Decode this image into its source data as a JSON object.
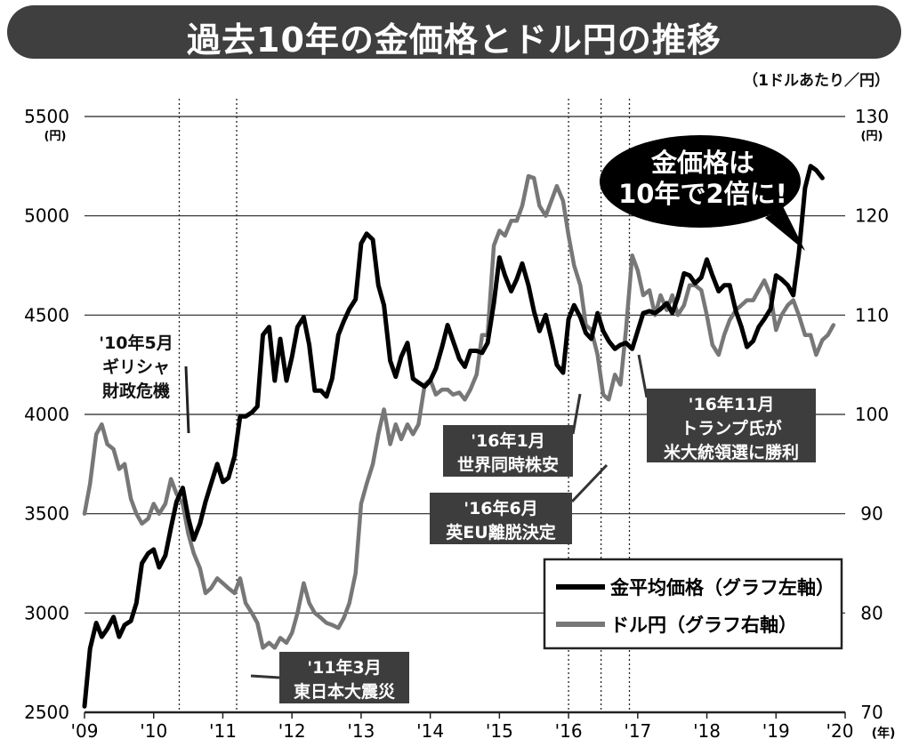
{
  "title": "過去10年の金価格とドル円の推移",
  "unit_note": "（1ドルあたり／円）",
  "chart_data": {
    "type": "line",
    "left_axis": {
      "unit": "(円)",
      "min": 2500,
      "max": 5500,
      "ticks": [
        "5500",
        "5000",
        "4500",
        "4000",
        "3500",
        "3000",
        "2500"
      ]
    },
    "right_axis": {
      "unit": "(円)",
      "min": 70,
      "max": 130,
      "ticks": [
        "130",
        "120",
        "110",
        "100",
        "90",
        "80",
        "70"
      ]
    },
    "x_axis": {
      "min": 2009,
      "max": 2020,
      "unit": "(年)",
      "ticks": [
        {
          "x": 2009,
          "label": "'09"
        },
        {
          "x": 2010,
          "label": "'10"
        },
        {
          "x": 2011,
          "label": "'11"
        },
        {
          "x": 2012,
          "label": "'12"
        },
        {
          "x": 2013,
          "label": "'13"
        },
        {
          "x": 2014,
          "label": "'14"
        },
        {
          "x": 2015,
          "label": "'15"
        },
        {
          "x": 2016,
          "label": "'16"
        },
        {
          "x": 2017,
          "label": "'17"
        },
        {
          "x": 2018,
          "label": "'18"
        },
        {
          "x": 2019,
          "label": "'19"
        },
        {
          "x": 2020,
          "label": "'20"
        }
      ]
    },
    "grid": "horizontal",
    "legend_placement": "bottom-right",
    "series": [
      {
        "name": "金平均価格（グラフ左軸）",
        "axis": "left",
        "color": "#000000",
        "points": [
          [
            2009.0,
            2530
          ],
          [
            2009.08,
            2820
          ],
          [
            2009.17,
            2950
          ],
          [
            2009.25,
            2880
          ],
          [
            2009.33,
            2920
          ],
          [
            2009.42,
            2980
          ],
          [
            2009.5,
            2880
          ],
          [
            2009.58,
            2940
          ],
          [
            2009.67,
            2960
          ],
          [
            2009.75,
            3050
          ],
          [
            2009.83,
            3250
          ],
          [
            2009.92,
            3300
          ],
          [
            2010.0,
            3320
          ],
          [
            2010.08,
            3230
          ],
          [
            2010.17,
            3290
          ],
          [
            2010.25,
            3430
          ],
          [
            2010.33,
            3560
          ],
          [
            2010.42,
            3630
          ],
          [
            2010.5,
            3480
          ],
          [
            2010.58,
            3370
          ],
          [
            2010.67,
            3450
          ],
          [
            2010.75,
            3560
          ],
          [
            2010.83,
            3650
          ],
          [
            2010.92,
            3750
          ],
          [
            2011.0,
            3660
          ],
          [
            2011.08,
            3680
          ],
          [
            2011.17,
            3790
          ],
          [
            2011.25,
            3990
          ],
          [
            2011.33,
            3990
          ],
          [
            2011.42,
            4010
          ],
          [
            2011.5,
            4040
          ],
          [
            2011.58,
            4400
          ],
          [
            2011.67,
            4440
          ],
          [
            2011.75,
            4170
          ],
          [
            2011.83,
            4380
          ],
          [
            2011.92,
            4170
          ],
          [
            2012.0,
            4290
          ],
          [
            2012.08,
            4440
          ],
          [
            2012.17,
            4490
          ],
          [
            2012.25,
            4350
          ],
          [
            2012.33,
            4120
          ],
          [
            2012.42,
            4120
          ],
          [
            2012.5,
            4090
          ],
          [
            2012.58,
            4180
          ],
          [
            2012.67,
            4400
          ],
          [
            2012.75,
            4470
          ],
          [
            2012.83,
            4530
          ],
          [
            2012.92,
            4580
          ],
          [
            2013.0,
            4860
          ],
          [
            2013.08,
            4910
          ],
          [
            2013.17,
            4880
          ],
          [
            2013.25,
            4650
          ],
          [
            2013.33,
            4550
          ],
          [
            2013.42,
            4270
          ],
          [
            2013.5,
            4190
          ],
          [
            2013.58,
            4290
          ],
          [
            2013.67,
            4360
          ],
          [
            2013.75,
            4180
          ],
          [
            2013.83,
            4160
          ],
          [
            2013.92,
            4140
          ],
          [
            2014.0,
            4170
          ],
          [
            2014.08,
            4230
          ],
          [
            2014.17,
            4340
          ],
          [
            2014.25,
            4450
          ],
          [
            2014.33,
            4370
          ],
          [
            2014.42,
            4280
          ],
          [
            2014.5,
            4240
          ],
          [
            2014.58,
            4320
          ],
          [
            2014.67,
            4320
          ],
          [
            2014.75,
            4310
          ],
          [
            2014.83,
            4360
          ],
          [
            2014.92,
            4560
          ],
          [
            2015.0,
            4790
          ],
          [
            2015.08,
            4700
          ],
          [
            2015.17,
            4620
          ],
          [
            2015.25,
            4680
          ],
          [
            2015.33,
            4760
          ],
          [
            2015.42,
            4650
          ],
          [
            2015.5,
            4520
          ],
          [
            2015.58,
            4420
          ],
          [
            2015.67,
            4500
          ],
          [
            2015.75,
            4380
          ],
          [
            2015.83,
            4250
          ],
          [
            2015.92,
            4210
          ],
          [
            2016.0,
            4480
          ],
          [
            2016.08,
            4550
          ],
          [
            2016.17,
            4490
          ],
          [
            2016.25,
            4410
          ],
          [
            2016.33,
            4380
          ],
          [
            2016.42,
            4510
          ],
          [
            2016.5,
            4420
          ],
          [
            2016.58,
            4370
          ],
          [
            2016.67,
            4330
          ],
          [
            2016.75,
            4350
          ],
          [
            2016.83,
            4360
          ],
          [
            2016.92,
            4330
          ],
          [
            2017.0,
            4420
          ],
          [
            2017.08,
            4510
          ],
          [
            2017.17,
            4520
          ],
          [
            2017.25,
            4510
          ],
          [
            2017.33,
            4530
          ],
          [
            2017.42,
            4560
          ],
          [
            2017.5,
            4510
          ],
          [
            2017.58,
            4590
          ],
          [
            2017.67,
            4710
          ],
          [
            2017.75,
            4700
          ],
          [
            2017.83,
            4660
          ],
          [
            2017.92,
            4690
          ],
          [
            2018.0,
            4780
          ],
          [
            2018.08,
            4700
          ],
          [
            2018.17,
            4620
          ],
          [
            2018.25,
            4650
          ],
          [
            2018.33,
            4650
          ],
          [
            2018.42,
            4520
          ],
          [
            2018.5,
            4440
          ],
          [
            2018.58,
            4340
          ],
          [
            2018.67,
            4370
          ],
          [
            2018.75,
            4440
          ],
          [
            2018.83,
            4480
          ],
          [
            2018.92,
            4530
          ],
          [
            2019.0,
            4700
          ],
          [
            2019.08,
            4680
          ],
          [
            2019.17,
            4650
          ],
          [
            2019.25,
            4600
          ],
          [
            2019.33,
            4810
          ],
          [
            2019.42,
            5140
          ],
          [
            2019.5,
            5250
          ],
          [
            2019.58,
            5230
          ],
          [
            2019.67,
            5190
          ]
        ]
      },
      {
        "name": "ドル円（グラフ右軸）",
        "axis": "right",
        "color": "#777777",
        "points": [
          [
            2009.0,
            90.0
          ],
          [
            2009.08,
            93.0
          ],
          [
            2009.17,
            98.0
          ],
          [
            2009.25,
            99.0
          ],
          [
            2009.33,
            97.0
          ],
          [
            2009.42,
            96.5
          ],
          [
            2009.5,
            94.5
          ],
          [
            2009.58,
            95.0
          ],
          [
            2009.67,
            91.5
          ],
          [
            2009.75,
            90.0
          ],
          [
            2009.83,
            89.0
          ],
          [
            2009.92,
            89.5
          ],
          [
            2010.0,
            91.0
          ],
          [
            2010.08,
            90.0
          ],
          [
            2010.17,
            91.0
          ],
          [
            2010.25,
            93.5
          ],
          [
            2010.33,
            92.0
          ],
          [
            2010.42,
            91.0
          ],
          [
            2010.5,
            88.0
          ],
          [
            2010.58,
            86.0
          ],
          [
            2010.67,
            84.5
          ],
          [
            2010.75,
            82.0
          ],
          [
            2010.83,
            82.5
          ],
          [
            2010.92,
            83.5
          ],
          [
            2011.0,
            83.0
          ],
          [
            2011.08,
            82.5
          ],
          [
            2011.17,
            82.0
          ],
          [
            2011.25,
            83.5
          ],
          [
            2011.33,
            81.0
          ],
          [
            2011.42,
            80.0
          ],
          [
            2011.5,
            79.0
          ],
          [
            2011.58,
            76.5
          ],
          [
            2011.67,
            77.0
          ],
          [
            2011.75,
            76.5
          ],
          [
            2011.83,
            77.5
          ],
          [
            2011.92,
            77.0
          ],
          [
            2012.0,
            78.0
          ],
          [
            2012.08,
            80.0
          ],
          [
            2012.17,
            83.0
          ],
          [
            2012.25,
            81.0
          ],
          [
            2012.33,
            80.0
          ],
          [
            2012.42,
            79.5
          ],
          [
            2012.5,
            79.0
          ],
          [
            2012.58,
            78.8
          ],
          [
            2012.67,
            78.5
          ],
          [
            2012.75,
            79.5
          ],
          [
            2012.83,
            81.0
          ],
          [
            2012.92,
            84.0
          ],
          [
            2013.0,
            91.0
          ],
          [
            2013.08,
            93.0
          ],
          [
            2013.17,
            95.0
          ],
          [
            2013.25,
            98.0
          ],
          [
            2013.33,
            100.5
          ],
          [
            2013.42,
            97.0
          ],
          [
            2013.5,
            99.0
          ],
          [
            2013.58,
            97.5
          ],
          [
            2013.67,
            99.0
          ],
          [
            2013.75,
            98.0
          ],
          [
            2013.83,
            99.0
          ],
          [
            2013.92,
            103.0
          ],
          [
            2014.0,
            103.5
          ],
          [
            2014.08,
            102.0
          ],
          [
            2014.17,
            102.5
          ],
          [
            2014.25,
            102.5
          ],
          [
            2014.33,
            102.0
          ],
          [
            2014.42,
            102.2
          ],
          [
            2014.5,
            101.5
          ],
          [
            2014.58,
            102.5
          ],
          [
            2014.67,
            104.0
          ],
          [
            2014.75,
            108.0
          ],
          [
            2014.83,
            108.0
          ],
          [
            2014.92,
            117.0
          ],
          [
            2015.0,
            118.5
          ],
          [
            2015.08,
            118.0
          ],
          [
            2015.17,
            119.5
          ],
          [
            2015.25,
            119.5
          ],
          [
            2015.33,
            121.0
          ],
          [
            2015.42,
            124.0
          ],
          [
            2015.5,
            123.8
          ],
          [
            2015.58,
            121.0
          ],
          [
            2015.67,
            120.0
          ],
          [
            2015.75,
            121.5
          ],
          [
            2015.83,
            123.0
          ],
          [
            2015.92,
            121.5
          ],
          [
            2016.0,
            118.0
          ],
          [
            2016.08,
            115.0
          ],
          [
            2016.17,
            113.0
          ],
          [
            2016.25,
            109.0
          ],
          [
            2016.33,
            108.5
          ],
          [
            2016.42,
            106.0
          ],
          [
            2016.5,
            102.0
          ],
          [
            2016.58,
            101.5
          ],
          [
            2016.67,
            104.0
          ],
          [
            2016.75,
            103.0
          ],
          [
            2016.83,
            108.5
          ],
          [
            2016.92,
            116.0
          ],
          [
            2017.0,
            114.5
          ],
          [
            2017.08,
            112.0
          ],
          [
            2017.17,
            112.5
          ],
          [
            2017.25,
            110.0
          ],
          [
            2017.33,
            112.0
          ],
          [
            2017.42,
            110.5
          ],
          [
            2017.5,
            112.0
          ],
          [
            2017.58,
            110.0
          ],
          [
            2017.67,
            111.0
          ],
          [
            2017.75,
            113.0
          ],
          [
            2017.83,
            113.0
          ],
          [
            2017.92,
            112.5
          ],
          [
            2018.0,
            110.0
          ],
          [
            2018.08,
            107.0
          ],
          [
            2018.17,
            106.0
          ],
          [
            2018.25,
            108.0
          ],
          [
            2018.33,
            109.5
          ],
          [
            2018.42,
            110.5
          ],
          [
            2018.5,
            111.0
          ],
          [
            2018.58,
            111.5
          ],
          [
            2018.67,
            111.5
          ],
          [
            2018.75,
            112.5
          ],
          [
            2018.83,
            113.5
          ],
          [
            2018.92,
            112.0
          ],
          [
            2019.0,
            108.5
          ],
          [
            2019.08,
            110.0
          ],
          [
            2019.17,
            111.0
          ],
          [
            2019.25,
            111.5
          ],
          [
            2019.33,
            110.0
          ],
          [
            2019.42,
            108.0
          ],
          [
            2019.5,
            108.0
          ],
          [
            2019.58,
            106.0
          ],
          [
            2019.67,
            107.5
          ],
          [
            2019.75,
            108.0
          ],
          [
            2019.83,
            109.0
          ]
        ]
      }
    ],
    "events": [
      {
        "x": 2010.37,
        "label": "'10年5月\nギリシャ\n財政危機"
      },
      {
        "x": 2011.2,
        "label": "'11年3月\n東日本大震災"
      },
      {
        "x": 2016.0,
        "label": "'16年1月\n世界同時株安"
      },
      {
        "x": 2016.47,
        "label": "'16年6月\n英EU離脱決定"
      },
      {
        "x": 2016.88,
        "label": "'16年11月\nトランプ氏が\n米大統領選に勝利"
      }
    ],
    "annotations": [
      "金価格は\n10年で2倍に!"
    ],
    "legend": [
      "金平均価格（グラフ左軸）",
      "ドル円（グラフ右軸）"
    ]
  }
}
